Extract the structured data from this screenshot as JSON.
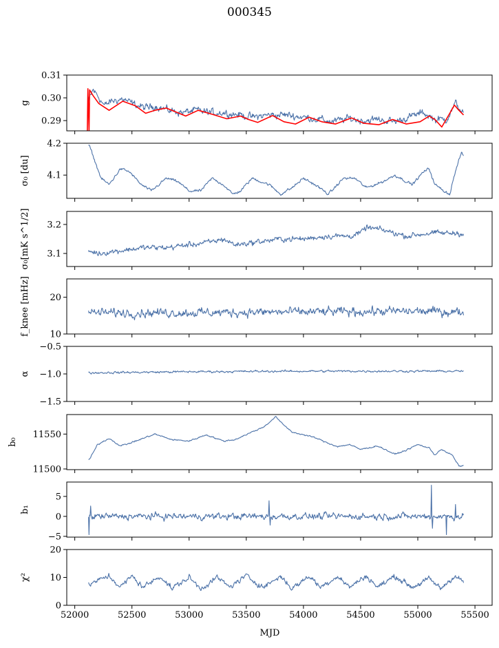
{
  "figure": {
    "title": "000345"
  },
  "colors": {
    "series": "#4c72a8",
    "model": "#ff0000",
    "axis": "#000000"
  },
  "x_axis": {
    "label": "MJD",
    "ticks": [
      52000,
      52500,
      53000,
      53500,
      54000,
      54500,
      55000,
      55500
    ],
    "xlim": [
      51930,
      55650
    ]
  },
  "chart_data": [
    {
      "type": "line",
      "ylabel": "g",
      "ylim": [
        0.2855,
        0.31
      ],
      "yticks": [
        0.29,
        0.3,
        0.31
      ],
      "ytick_labels": [
        "0.29",
        "0.30",
        "0.31"
      ],
      "x_range": [
        52120,
        55400
      ],
      "noise": 0.0015,
      "series": [
        {
          "color": "#4c72a8",
          "points": [
            [
              52120,
              0.2985
            ],
            [
              52160,
              0.3035
            ],
            [
              52200,
              0.301
            ],
            [
              52260,
              0.2965
            ],
            [
              52320,
              0.2985
            ],
            [
              52420,
              0.2995
            ],
            [
              52500,
              0.2975
            ],
            [
              52620,
              0.2955
            ],
            [
              52700,
              0.2965
            ],
            [
              52820,
              0.2945
            ],
            [
              52950,
              0.2935
            ],
            [
              53050,
              0.2945
            ],
            [
              53200,
              0.2935
            ],
            [
              53300,
              0.2935
            ],
            [
              53450,
              0.2925
            ],
            [
              53550,
              0.2915
            ],
            [
              53700,
              0.2925
            ],
            [
              53850,
              0.2925
            ],
            [
              54000,
              0.2915
            ],
            [
              54150,
              0.2905
            ],
            [
              54250,
              0.2895
            ],
            [
              54400,
              0.291
            ],
            [
              54500,
              0.29
            ],
            [
              54650,
              0.2905
            ],
            [
              54800,
              0.2895
            ],
            [
              54950,
              0.292
            ],
            [
              55050,
              0.2935
            ],
            [
              55150,
              0.2905
            ],
            [
              55250,
              0.2905
            ],
            [
              55330,
              0.2975
            ],
            [
              55400,
              0.2935
            ]
          ]
        },
        {
          "color": "#ff0000",
          "points": [
            [
              52110,
              0.2855
            ],
            [
              52115,
              0.304
            ],
            [
              52125,
              0.2855
            ],
            [
              52130,
              0.3035
            ],
            [
              52160,
              0.301
            ],
            [
              52210,
              0.2975
            ],
            [
              52300,
              0.2945
            ],
            [
              52420,
              0.2985
            ],
            [
              52530,
              0.2965
            ],
            [
              52620,
              0.2932
            ],
            [
              52700,
              0.2945
            ],
            [
              52800,
              0.2955
            ],
            [
              52900,
              0.2935
            ],
            [
              52970,
              0.292
            ],
            [
              53080,
              0.2945
            ],
            [
              53200,
              0.2928
            ],
            [
              53330,
              0.2908
            ],
            [
              53450,
              0.292
            ],
            [
              53520,
              0.2905
            ],
            [
              53600,
              0.2892
            ],
            [
              53730,
              0.2922
            ],
            [
              53830,
              0.2895
            ],
            [
              53930,
              0.2885
            ],
            [
              54050,
              0.2915
            ],
            [
              54160,
              0.2895
            ],
            [
              54280,
              0.2885
            ],
            [
              54420,
              0.2912
            ],
            [
              54530,
              0.2888
            ],
            [
              54660,
              0.2882
            ],
            [
              54780,
              0.2905
            ],
            [
              54900,
              0.2885
            ],
            [
              55020,
              0.2895
            ],
            [
              55100,
              0.292
            ],
            [
              55150,
              0.2905
            ],
            [
              55210,
              0.2872
            ],
            [
              55280,
              0.2932
            ],
            [
              55320,
              0.2968
            ],
            [
              55360,
              0.2945
            ],
            [
              55400,
              0.2925
            ]
          ]
        }
      ]
    },
    {
      "type": "line",
      "ylabel": "σ₀ [du]",
      "ylim": [
        4.027,
        4.2
      ],
      "yticks": [
        4.1,
        4.2
      ],
      "ytick_labels": [
        "4.1",
        "4.2"
      ],
      "x_range": [
        52120,
        55400
      ],
      "noise": 0.004,
      "series": [
        {
          "color": "#4c72a8",
          "points": [
            [
              52130,
              4.19
            ],
            [
              52160,
              4.16
            ],
            [
              52230,
              4.09
            ],
            [
              52300,
              4.07
            ],
            [
              52400,
              4.12
            ],
            [
              52480,
              4.11
            ],
            [
              52580,
              4.07
            ],
            [
              52670,
              4.05
            ],
            [
              52800,
              4.09
            ],
            [
              52900,
              4.08
            ],
            [
              53000,
              4.05
            ],
            [
              53100,
              4.05
            ],
            [
              53200,
              4.09
            ],
            [
              53300,
              4.07
            ],
            [
              53380,
              4.04
            ],
            [
              53450,
              4.05
            ],
            [
              53550,
              4.09
            ],
            [
              53700,
              4.07
            ],
            [
              53800,
              4.04
            ],
            [
              53900,
              4.06
            ],
            [
              54000,
              4.09
            ],
            [
              54100,
              4.07
            ],
            [
              54220,
              4.04
            ],
            [
              54350,
              4.09
            ],
            [
              54450,
              4.09
            ],
            [
              54550,
              4.06
            ],
            [
              54700,
              4.08
            ],
            [
              54800,
              4.1
            ],
            [
              54950,
              4.07
            ],
            [
              55050,
              4.11
            ],
            [
              55100,
              4.12
            ],
            [
              55150,
              4.07
            ],
            [
              55230,
              4.05
            ],
            [
              55280,
              4.04
            ],
            [
              55320,
              4.1
            ],
            [
              55380,
              4.17
            ],
            [
              55400,
              4.16
            ]
          ]
        }
      ]
    },
    {
      "type": "line",
      "ylabel": "σ₀[mK s^1/2]",
      "ylim": [
        3.055,
        3.245
      ],
      "yticks": [
        3.1,
        3.2
      ],
      "ytick_labels": [
        "3.1",
        "3.2"
      ],
      "x_range": [
        52120,
        55400
      ],
      "noise": 0.009,
      "series": [
        {
          "color": "#4c72a8",
          "points": [
            [
              52120,
              3.11
            ],
            [
              52200,
              3.1
            ],
            [
              52400,
              3.11
            ],
            [
              52600,
              3.12
            ],
            [
              52800,
              3.12
            ],
            [
              53000,
              3.13
            ],
            [
              53200,
              3.14
            ],
            [
              53300,
              3.15
            ],
            [
              53400,
              3.13
            ],
            [
              53600,
              3.14
            ],
            [
              53800,
              3.15
            ],
            [
              54000,
              3.15
            ],
            [
              54200,
              3.16
            ],
            [
              54400,
              3.16
            ],
            [
              54500,
              3.17
            ],
            [
              54550,
              3.19
            ],
            [
              54700,
              3.18
            ],
            [
              54900,
              3.16
            ],
            [
              55100,
              3.17
            ],
            [
              55300,
              3.17
            ],
            [
              55400,
              3.17
            ]
          ]
        }
      ]
    },
    {
      "type": "line",
      "ylabel": "f_knee [mHz]",
      "ylim": [
        10,
        25
      ],
      "yticks": [
        10,
        20
      ],
      "ytick_labels": [
        "10",
        "20"
      ],
      "x_range": [
        52120,
        55400
      ],
      "noise": 1.1,
      "series": [
        {
          "color": "#4c72a8",
          "points": [
            [
              52120,
              15.8
            ],
            [
              53000,
              15.8
            ],
            [
              54000,
              16.0
            ],
            [
              55000,
              16.2
            ],
            [
              55400,
              16.0
            ]
          ]
        }
      ]
    },
    {
      "type": "line",
      "ylabel": "α",
      "ylim": [
        -1.5,
        -0.5
      ],
      "yticks": [
        -1.5,
        -1.0,
        -0.5
      ],
      "ytick_labels": [
        "−1.5",
        "−1.0",
        "−0.5"
      ],
      "x_range": [
        52120,
        55400
      ],
      "noise": 0.018,
      "series": [
        {
          "color": "#4c72a8",
          "points": [
            [
              52120,
              -0.98
            ],
            [
              53000,
              -0.96
            ],
            [
              54000,
              -0.95
            ],
            [
              55000,
              -0.95
            ],
            [
              55400,
              -0.95
            ]
          ]
        }
      ]
    },
    {
      "type": "line",
      "ylabel": "b₀",
      "ylim": [
        11499,
        11578
      ],
      "yticks": [
        11500,
        11550
      ],
      "ytick_labels": [
        "11500",
        "11550"
      ],
      "x_range": [
        52120,
        55400
      ],
      "noise": 0.9,
      "series": [
        {
          "color": "#4c72a8",
          "points": [
            [
              52130,
              11514
            ],
            [
              52200,
              11535
            ],
            [
              52300,
              11544
            ],
            [
              52400,
              11533
            ],
            [
              52500,
              11538
            ],
            [
              52700,
              11550
            ],
            [
              52850,
              11542
            ],
            [
              53000,
              11540
            ],
            [
              53150,
              11549
            ],
            [
              53300,
              11540
            ],
            [
              53400,
              11542
            ],
            [
              53550,
              11553
            ],
            [
              53650,
              11560
            ],
            [
              53760,
              11575
            ],
            [
              53800,
              11567
            ],
            [
              53900,
              11553
            ],
            [
              54000,
              11549
            ],
            [
              54100,
              11545
            ],
            [
              54200,
              11538
            ],
            [
              54300,
              11532
            ],
            [
              54400,
              11535
            ],
            [
              54500,
              11528
            ],
            [
              54650,
              11533
            ],
            [
              54800,
              11521
            ],
            [
              54900,
              11527
            ],
            [
              55000,
              11535
            ],
            [
              55100,
              11530
            ],
            [
              55150,
              11520
            ],
            [
              55200,
              11528
            ],
            [
              55300,
              11520
            ],
            [
              55360,
              11504
            ],
            [
              55400,
              11505
            ]
          ]
        }
      ]
    },
    {
      "type": "line",
      "ylabel": "b₁",
      "ylim": [
        -5.2,
        8.6
      ],
      "yticks": [
        -5,
        0,
        5
      ],
      "ytick_labels": [
        "−5",
        "0",
        "5"
      ],
      "x_range": [
        52120,
        55400
      ],
      "noise": 0.75,
      "series": [
        {
          "color": "#4c72a8",
          "points": [
            [
              52120,
              0
            ],
            [
              53000,
              0
            ],
            [
              54000,
              0
            ],
            [
              55000,
              0
            ],
            [
              55400,
              0
            ]
          ]
        }
      ],
      "spikes": [
        [
          52125,
          -4.6
        ],
        [
          52140,
          2.6
        ],
        [
          53700,
          3.9
        ],
        [
          53710,
          -2.2
        ],
        [
          55120,
          7.8
        ],
        [
          55130,
          -3.0
        ],
        [
          55250,
          -4.6
        ],
        [
          55330,
          3.0
        ]
      ]
    },
    {
      "type": "line",
      "ylabel": "χ²",
      "ylim": [
        0,
        20
      ],
      "yticks": [
        0,
        10,
        20
      ],
      "ytick_labels": [
        "0",
        "10",
        "20"
      ],
      "x_range": [
        52120,
        55400
      ],
      "noise": 0.9,
      "series": [
        {
          "color": "#4c72a8",
          "points": [
            [
              52120,
              7.5
            ],
            [
              52200,
              8.8
            ],
            [
              52300,
              10.5
            ],
            [
              52400,
              6.5
            ],
            [
              52500,
              10.5
            ],
            [
              52600,
              6.5
            ],
            [
              52750,
              10.5
            ],
            [
              52850,
              6.0
            ],
            [
              53000,
              10.0
            ],
            [
              53100,
              6.0
            ],
            [
              53250,
              10.0
            ],
            [
              53350,
              6.5
            ],
            [
              53500,
              10.5
            ],
            [
              53650,
              6.5
            ],
            [
              53800,
              10.5
            ],
            [
              53900,
              6.0
            ],
            [
              54050,
              10.5
            ],
            [
              54150,
              6.5
            ],
            [
              54300,
              10.5
            ],
            [
              54400,
              6.5
            ],
            [
              54550,
              10.5
            ],
            [
              54650,
              6.5
            ],
            [
              54800,
              10.5
            ],
            [
              54950,
              6.5
            ],
            [
              55100,
              9.5
            ],
            [
              55200,
              6.0
            ],
            [
              55320,
              10.5
            ],
            [
              55400,
              8.5
            ]
          ]
        }
      ]
    }
  ]
}
